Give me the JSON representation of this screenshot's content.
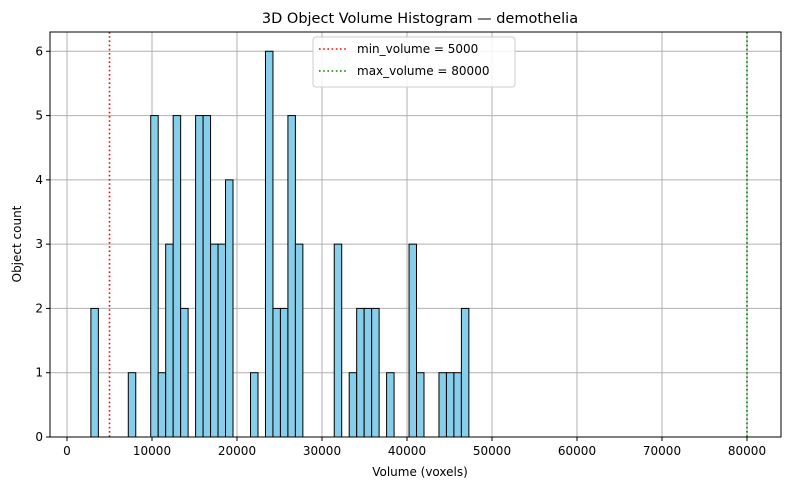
{
  "chart_data": {
    "type": "bar",
    "title": "3D Object Volume Histogram — demothelia",
    "xlabel": "Volume (voxels)",
    "ylabel": "Object count",
    "xlim": [
      -2000,
      84000
    ],
    "ylim": [
      0,
      6.3
    ],
    "xticks": [
      0,
      10000,
      20000,
      30000,
      40000,
      50000,
      60000,
      70000,
      80000
    ],
    "yticks": [
      0,
      1,
      2,
      3,
      4,
      5,
      6
    ],
    "grid": true,
    "bin_width": 880,
    "bar_color": "#87ceeb",
    "bar_edge_color": "#000000",
    "bins": [
      {
        "x": 3250,
        "count": 2
      },
      {
        "x": 7650,
        "count": 1
      },
      {
        "x": 10290,
        "count": 5
      },
      {
        "x": 11170,
        "count": 1
      },
      {
        "x": 12050,
        "count": 3
      },
      {
        "x": 12930,
        "count": 5
      },
      {
        "x": 13810,
        "count": 2
      },
      {
        "x": 15570,
        "count": 5
      },
      {
        "x": 16450,
        "count": 5
      },
      {
        "x": 17330,
        "count": 3
      },
      {
        "x": 18210,
        "count": 3
      },
      {
        "x": 19090,
        "count": 4
      },
      {
        "x": 22030,
        "count": 1
      },
      {
        "x": 23790,
        "count": 6
      },
      {
        "x": 24670,
        "count": 2
      },
      {
        "x": 25550,
        "count": 2
      },
      {
        "x": 26430,
        "count": 5
      },
      {
        "x": 27310,
        "count": 3
      },
      {
        "x": 31880,
        "count": 3
      },
      {
        "x": 33640,
        "count": 1
      },
      {
        "x": 34520,
        "count": 2
      },
      {
        "x": 35400,
        "count": 2
      },
      {
        "x": 36280,
        "count": 2
      },
      {
        "x": 38040,
        "count": 1
      },
      {
        "x": 40680,
        "count": 3
      },
      {
        "x": 41560,
        "count": 1
      },
      {
        "x": 44200,
        "count": 1
      },
      {
        "x": 45080,
        "count": 1
      },
      {
        "x": 45960,
        "count": 1
      },
      {
        "x": 46840,
        "count": 2
      }
    ],
    "reference_lines": [
      {
        "name": "min_volume = 5000",
        "x": 5000,
        "color": "#ff0000",
        "style": "dotted"
      },
      {
        "name": "max_volume = 80000",
        "x": 80000,
        "color": "#008000",
        "style": "dotted"
      }
    ],
    "legend_placement": "upper-center"
  }
}
